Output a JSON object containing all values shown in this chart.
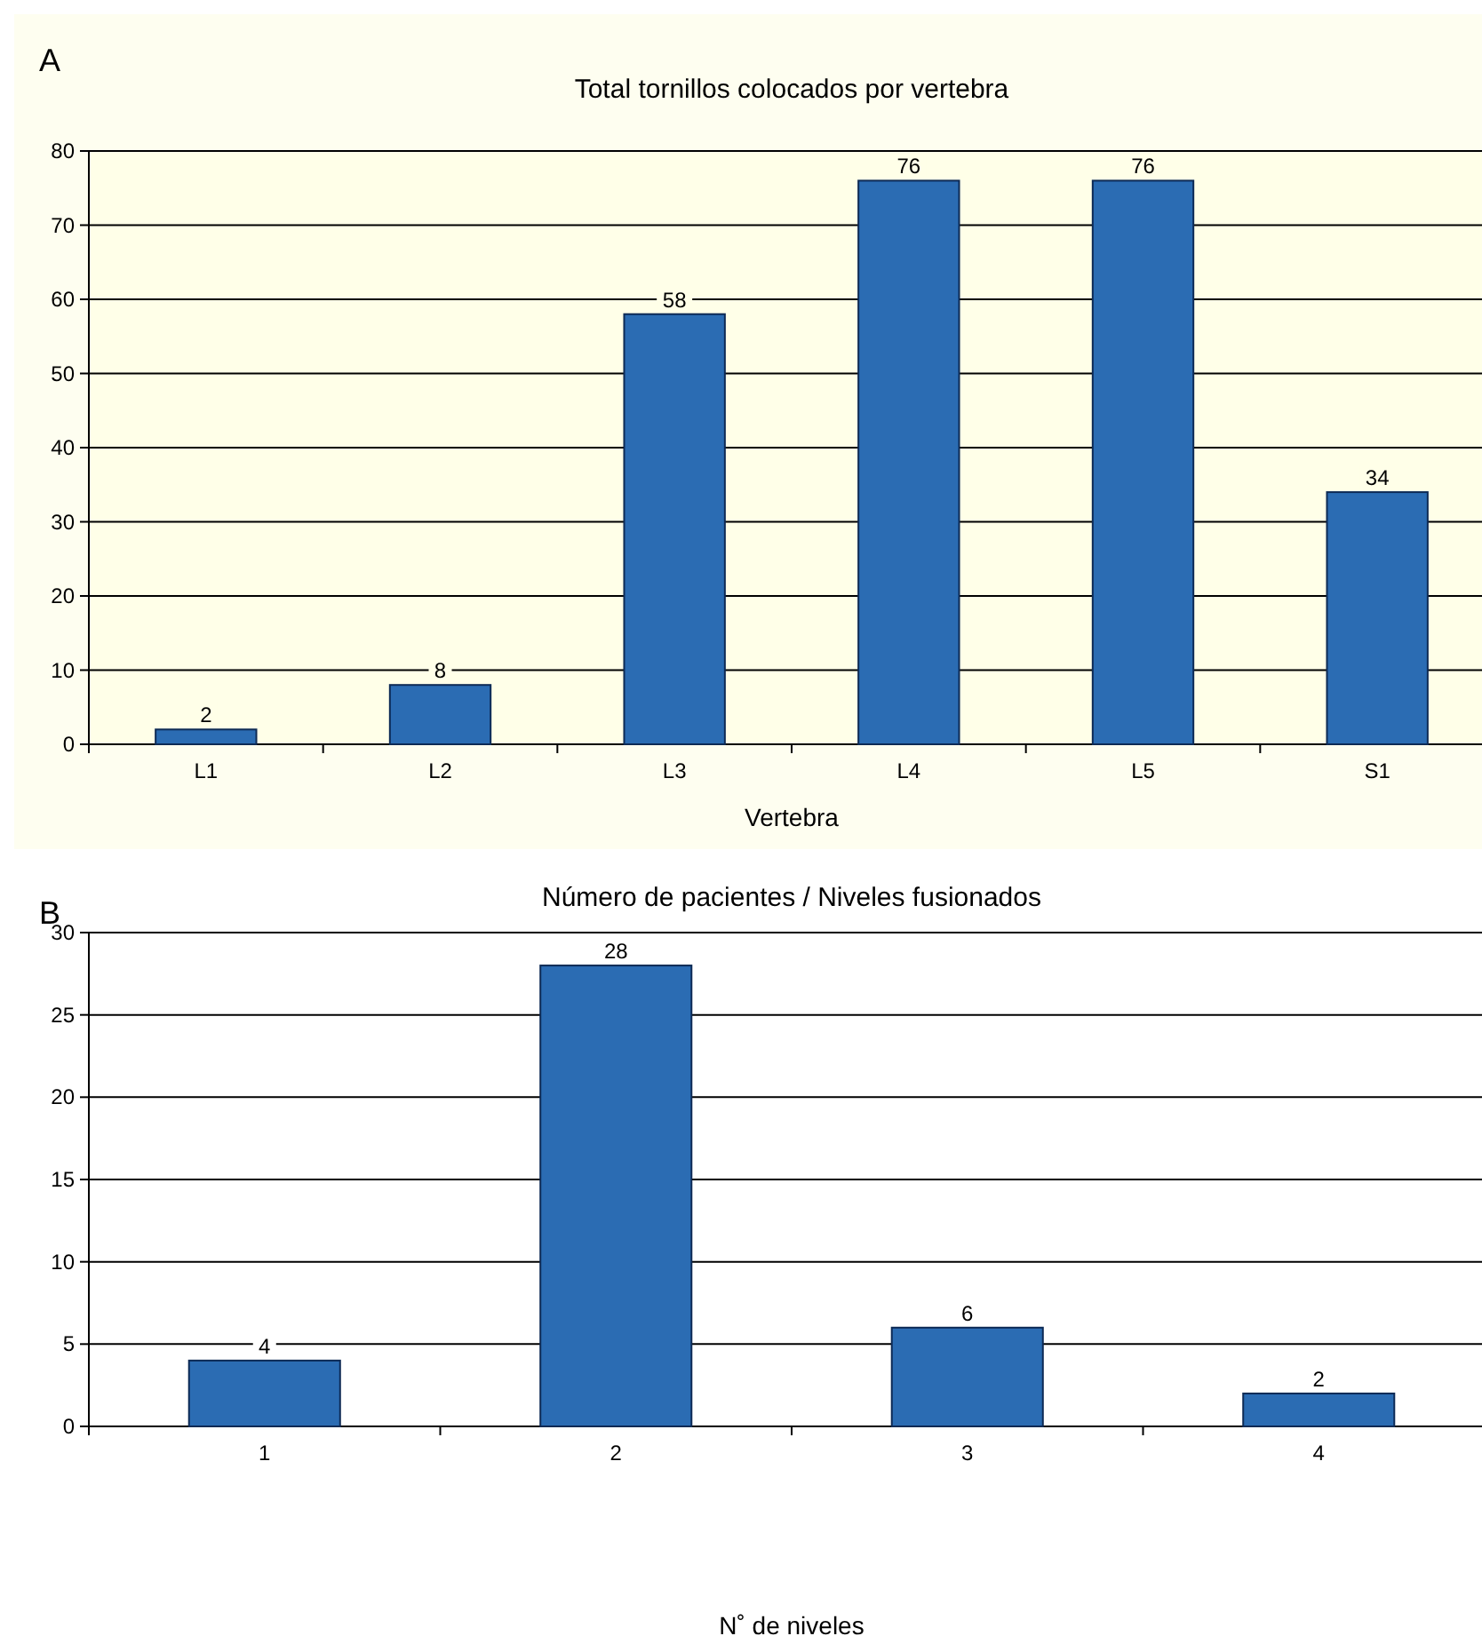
{
  "chart_data": [
    {
      "type": "bar",
      "title": "Total tornillos colocados por vertebra",
      "xlabel": "Vertebra",
      "annotations": [
        "A"
      ],
      "categories": [
        "L1",
        "L2",
        "L3",
        "L4",
        "L5",
        "S1"
      ],
      "values": [
        2,
        8,
        58,
        76,
        76,
        34
      ],
      "color": "#2b6cb3",
      "ylim": [
        0,
        80
      ],
      "yticks": [
        0,
        10,
        20,
        30,
        40,
        50,
        60,
        70,
        80
      ],
      "grid": "y",
      "data_labels": true
    },
    {
      "type": "bar",
      "title": "Número de pacientes / Niveles fusionados",
      "xlabel": "N˚ de niveles",
      "annotations": [
        "B"
      ],
      "categories": [
        "1",
        "2",
        "3",
        "4"
      ],
      "values": [
        4,
        28,
        6,
        2
      ],
      "color": "#2b6cb3",
      "ylim": [
        0,
        30
      ],
      "yticks": [
        0,
        5,
        10,
        15,
        20,
        25,
        30
      ],
      "grid": "y",
      "data_labels": true
    }
  ]
}
